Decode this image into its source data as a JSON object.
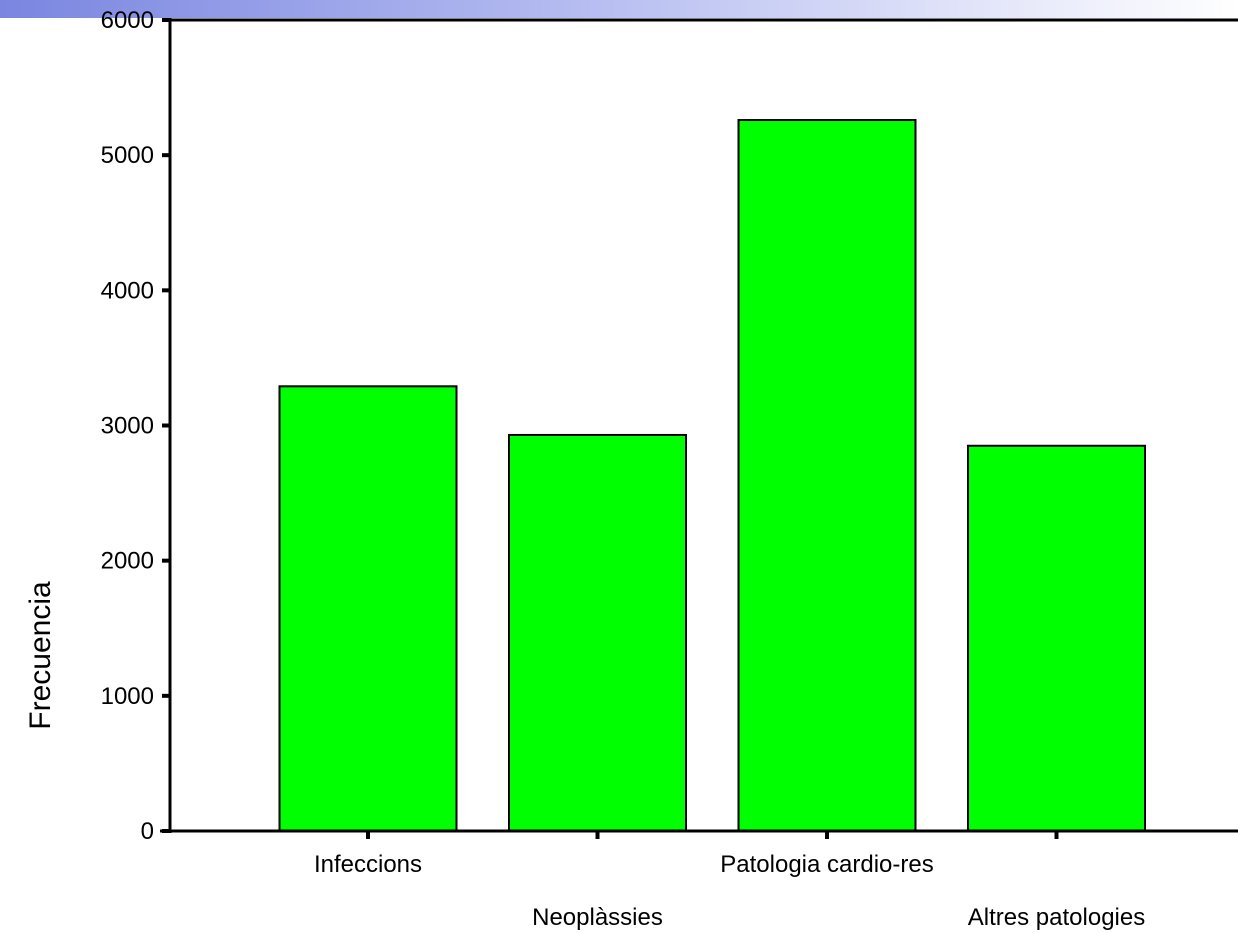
{
  "chart_data": {
    "type": "bar",
    "title": "",
    "xlabel": "",
    "ylabel": "Frecuencia",
    "ylim": [
      0,
      6000
    ],
    "yticks": [
      0,
      1000,
      2000,
      3000,
      4000,
      5000,
      6000
    ],
    "categories": [
      "Infeccions",
      "Neoplàssies",
      "Patologia cardio-res",
      "Altres patologies"
    ],
    "values": [
      3290,
      2930,
      5260,
      2850
    ],
    "grid": false,
    "legend": "none",
    "colors": {
      "bar_fill": "#00ff00",
      "bar_stroke": "#000000",
      "axis": "#000000",
      "header_band": "#7a86e0"
    }
  }
}
